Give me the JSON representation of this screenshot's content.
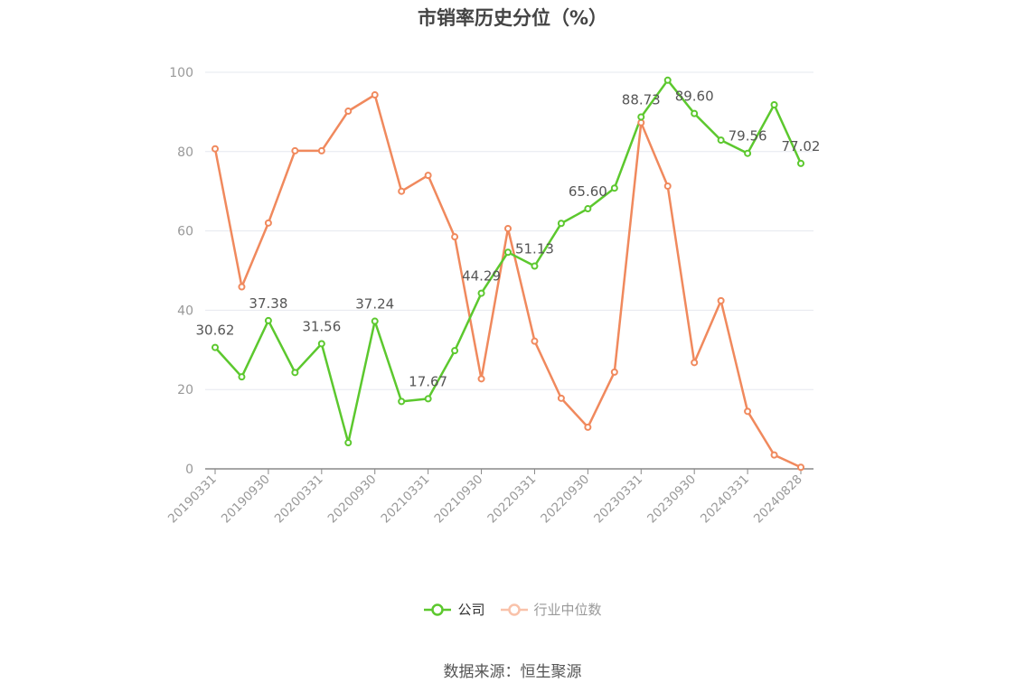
{
  "title": "市销率历史分位（%）",
  "source": "数据来源：恒生聚源",
  "colors": {
    "company": "#5cc82e",
    "industry": "#f0895d",
    "industry_legend": "#f9c2aa",
    "axis": "#999999",
    "grid": "#e6e8ef",
    "label": "#555555"
  },
  "chart_data": {
    "type": "line",
    "title": "市销率历史分位（%）",
    "ylim": [
      0,
      100
    ],
    "yticks": [
      0,
      20,
      40,
      60,
      80,
      100
    ],
    "grid": true,
    "legend_position": "bottom",
    "x_tick_labels": [
      "20190331",
      "20190930",
      "20200331",
      "20200930",
      "20210331",
      "20210930",
      "20220331",
      "20220930",
      "20230331",
      "20230930",
      "20240331",
      "20240828"
    ],
    "x_tick_indices": [
      0,
      2,
      4,
      6,
      8,
      10,
      12,
      14,
      16,
      18,
      20,
      22
    ],
    "x": [
      "20190331",
      "20190630",
      "20190930",
      "20191231",
      "20200331",
      "20200630",
      "20200930",
      "20201231",
      "20210331",
      "20210630",
      "20210930",
      "20211231",
      "20220331",
      "20220630",
      "20220930",
      "20221231",
      "20230331",
      "20230630",
      "20230930",
      "20231231",
      "20240331",
      "20240630",
      "20240828"
    ],
    "series": [
      {
        "name": "公司",
        "values": [
          30.62,
          23.2,
          37.38,
          24.3,
          31.56,
          6.6,
          37.24,
          17.0,
          17.67,
          29.8,
          44.29,
          54.6,
          51.13,
          61.9,
          65.6,
          70.8,
          88.73,
          98.0,
          89.6,
          82.9,
          79.56,
          91.8,
          77.02
        ],
        "labels": {
          "0": "30.62",
          "2": "37.38",
          "4": "31.56",
          "6": "37.24",
          "8": "17.67",
          "10": "44.29",
          "12": "51.13",
          "14": "65.60",
          "16": "88.73",
          "18": "89.60",
          "20": "79.56",
          "22": "77.02"
        }
      },
      {
        "name": "行业中位数",
        "values": [
          80.7,
          45.9,
          62.0,
          80.2,
          80.2,
          90.2,
          94.3,
          70.0,
          74.0,
          58.5,
          22.7,
          60.6,
          32.2,
          17.8,
          10.5,
          24.4,
          87.3,
          71.3,
          26.8,
          42.4,
          14.5,
          3.5,
          0.4
        ]
      }
    ]
  }
}
